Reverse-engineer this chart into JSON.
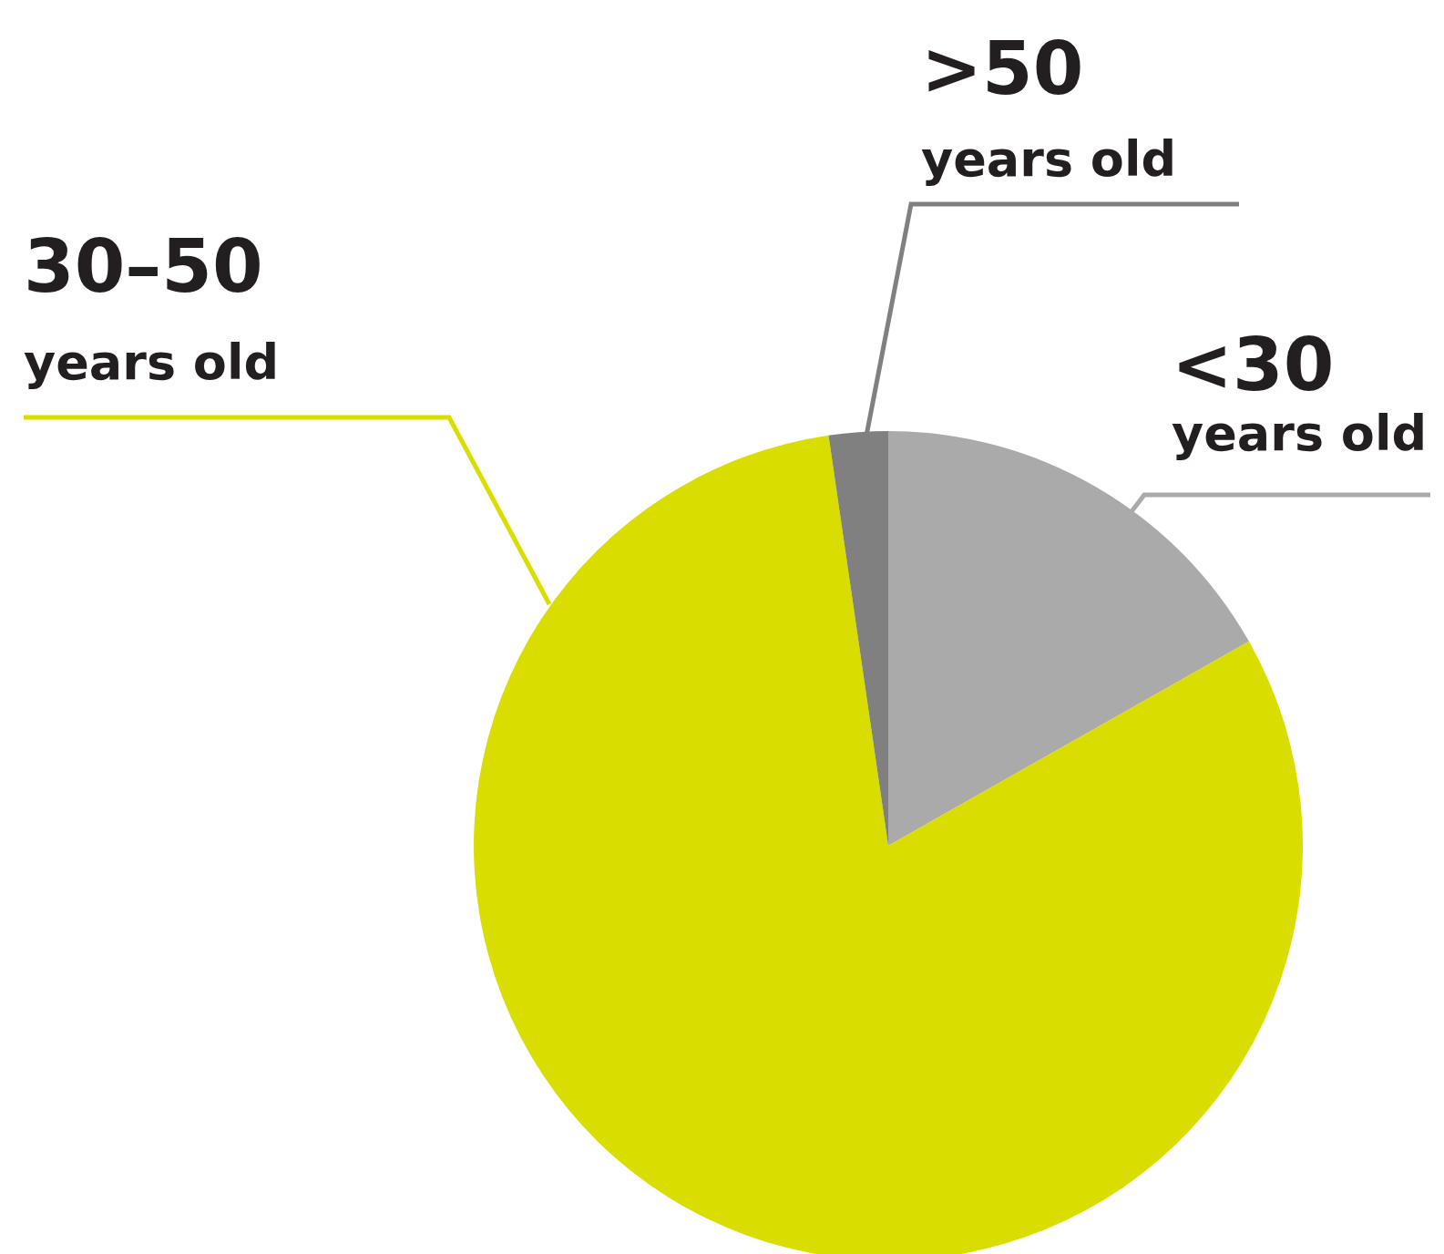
{
  "chart_data": {
    "type": "pie",
    "categories": [
      "<30 years old",
      "30–50 years old",
      ">50 years old"
    ],
    "values": [
      16.8,
      80.9,
      2.3
    ],
    "colors": [
      "#aaaaaa",
      "#d9de00",
      "#808080"
    ]
  }
}
